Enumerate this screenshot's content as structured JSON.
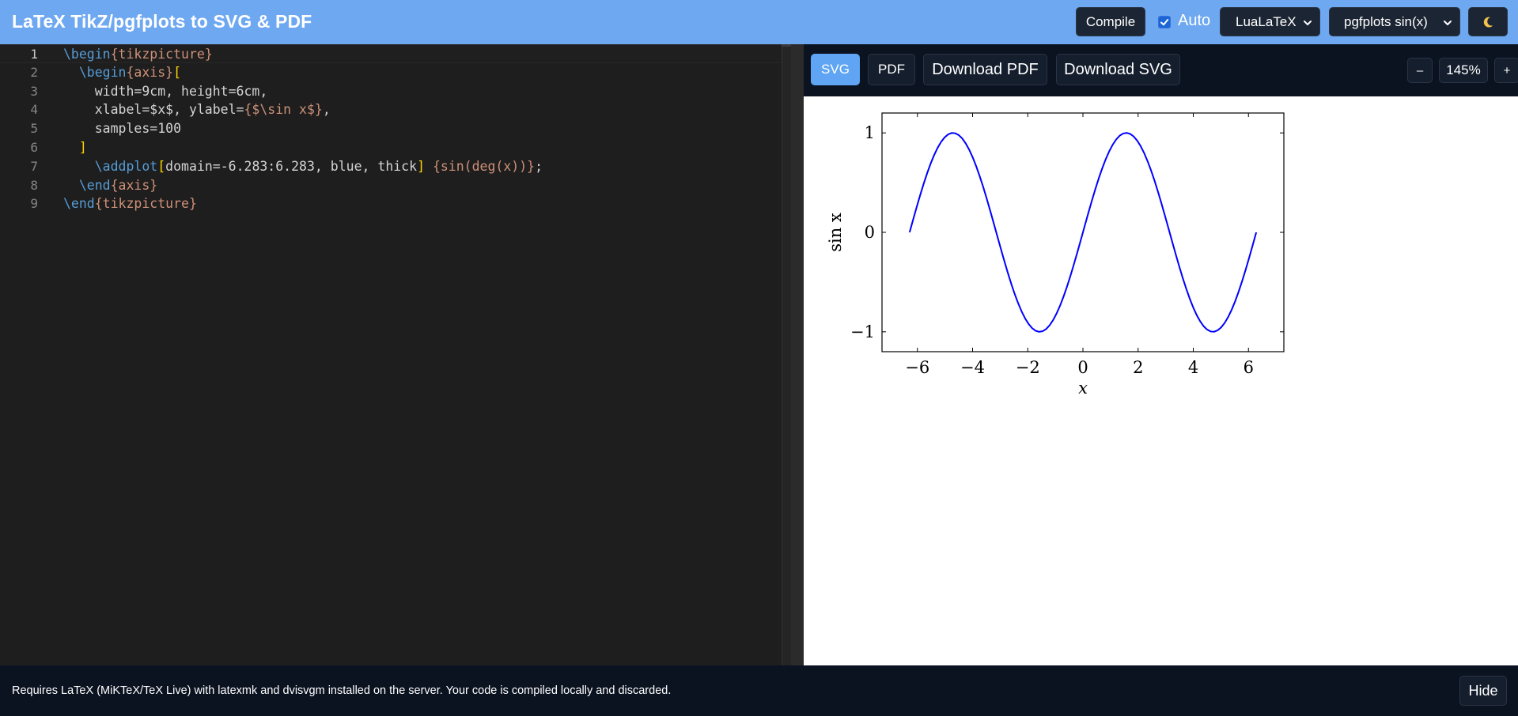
{
  "header": {
    "title": "LaTeX TikZ/pgfplots to SVG & PDF",
    "compile_label": "Compile",
    "auto_label": "Auto",
    "auto_checked": true,
    "engine_selected": "LuaLaTeX",
    "example_selected": "pgfplots sin(x)",
    "theme_icon": "moon-icon"
  },
  "editor": {
    "lines": [
      {
        "num": "1",
        "tokens": [
          [
            "kw",
            "\\begin"
          ],
          [
            "str",
            "{tikzpicture}"
          ]
        ]
      },
      {
        "num": "2",
        "tokens": [
          [
            "pln",
            "  "
          ],
          [
            "kw",
            "\\begin"
          ],
          [
            "str",
            "{axis}"
          ],
          [
            "brk",
            "["
          ]
        ]
      },
      {
        "num": "3",
        "tokens": [
          [
            "pln",
            "    width=9cm, height=6cm,"
          ]
        ]
      },
      {
        "num": "4",
        "tokens": [
          [
            "pln",
            "    xlabel=$x$, ylabel="
          ],
          [
            "str",
            "{$\\sin x$}"
          ],
          [
            "pln",
            ","
          ]
        ]
      },
      {
        "num": "5",
        "tokens": [
          [
            "pln",
            "    samples=100"
          ]
        ]
      },
      {
        "num": "6",
        "tokens": [
          [
            "pln",
            "  "
          ],
          [
            "brk",
            "]"
          ]
        ]
      },
      {
        "num": "7",
        "tokens": [
          [
            "pln",
            "    "
          ],
          [
            "kw",
            "\\addplot"
          ],
          [
            "brk",
            "["
          ],
          [
            "pln",
            "domain=-6.283:6.283, blue, thick"
          ],
          [
            "brk",
            "]"
          ],
          [
            "pln",
            " "
          ],
          [
            "str",
            "{sin(deg(x))}"
          ],
          [
            "pln",
            ";"
          ]
        ]
      },
      {
        "num": "8",
        "tokens": [
          [
            "pln",
            "  "
          ],
          [
            "kw",
            "\\end"
          ],
          [
            "str",
            "{axis}"
          ]
        ]
      },
      {
        "num": "9",
        "tokens": [
          [
            "kw",
            "\\end"
          ],
          [
            "str",
            "{tikzpicture}"
          ]
        ]
      }
    ],
    "active_line": 1
  },
  "preview": {
    "tabs": [
      "SVG",
      "PDF"
    ],
    "active_tab": "SVG",
    "download_pdf_label": "Download PDF",
    "download_svg_label": "Download SVG",
    "zoom_out_label": "–",
    "zoom_level": "145%",
    "zoom_in_label": "+"
  },
  "chart_data": {
    "type": "line",
    "function": "sin(x)",
    "x_domain": [
      -6.283,
      6.283
    ],
    "samples": 100,
    "xlim": [
      -7.283,
      7.283
    ],
    "ylim": [
      -1.2,
      1.2
    ],
    "xticks": [
      -6,
      -4,
      -2,
      0,
      2,
      4,
      6
    ],
    "yticks": [
      -1,
      0,
      1
    ],
    "xtick_labels": [
      "−6",
      "−4",
      "−2",
      "0",
      "2",
      "4",
      "6"
    ],
    "ytick_labels": [
      "−1",
      "0",
      "1"
    ],
    "xlabel": "x",
    "ylabel": "sin x",
    "series": [
      {
        "color": "#0000ff"
      }
    ],
    "grid": false
  },
  "footer": {
    "note": "Requires LaTeX (MiKTeX/TeX Live) with latexmk and dvisvgm installed on the server. Your code is compiled locally and discarded.",
    "hide_label": "Hide"
  }
}
